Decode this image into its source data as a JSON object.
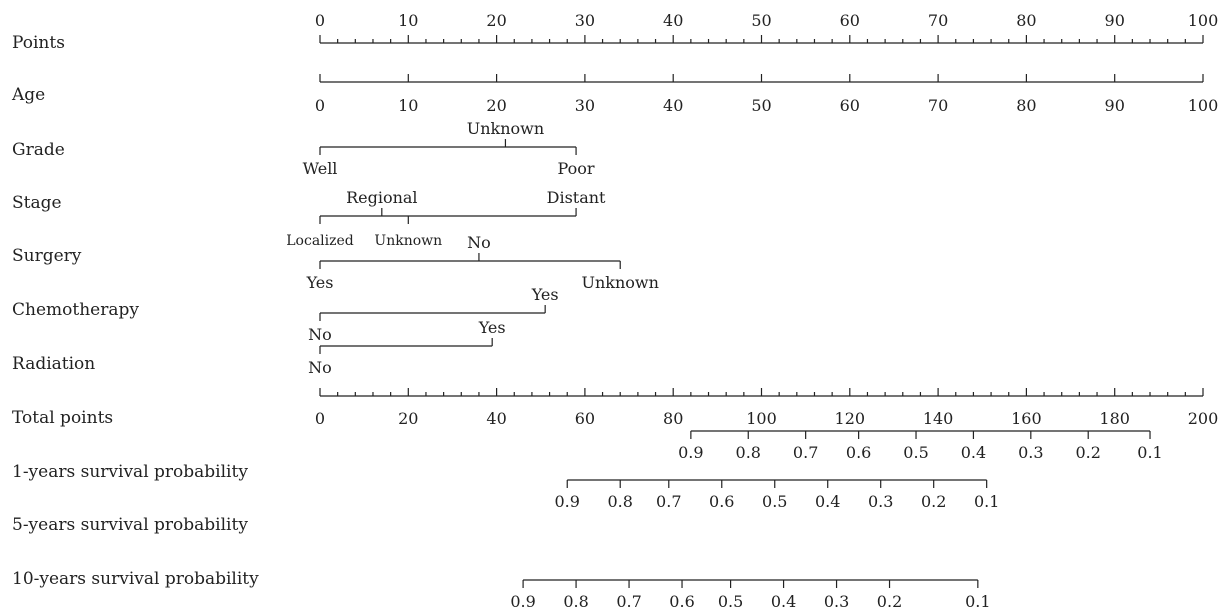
{
  "chart_data": {
    "type": "nomogram",
    "rows": [
      {
        "label": "Points",
        "kind": "scale",
        "min": 0,
        "max": 100,
        "major": [
          0,
          10,
          20,
          30,
          40,
          50,
          60,
          70,
          80,
          90,
          100
        ],
        "minor_step": 2,
        "labels_position": "above"
      },
      {
        "label": "Age",
        "kind": "scale",
        "min": 0,
        "max": 100,
        "major": [
          0,
          10,
          20,
          30,
          40,
          50,
          60,
          70,
          80,
          90,
          100
        ],
        "labels_position": "below"
      },
      {
        "label": "Grade",
        "kind": "categorical",
        "categories": [
          {
            "name": "Well",
            "points": 0,
            "label_position": "below"
          },
          {
            "name": "Unknown",
            "points": 21,
            "label_position": "above"
          },
          {
            "name": "Poor",
            "points": 29,
            "label_position": "below"
          }
        ]
      },
      {
        "label": "Stage",
        "kind": "categorical",
        "categories": [
          {
            "name": "Localized",
            "points": 0,
            "label_position": "below"
          },
          {
            "name": "Regional",
            "points": 7,
            "label_position": "above"
          },
          {
            "name": "Unknown",
            "points": 10,
            "label_position": "below"
          },
          {
            "name": "Distant",
            "points": 29,
            "label_position": "above"
          }
        ]
      },
      {
        "label": "Surgery",
        "kind": "categorical",
        "categories": [
          {
            "name": "Yes",
            "points": 0,
            "label_position": "below"
          },
          {
            "name": "No",
            "points": 18,
            "label_position": "above"
          },
          {
            "name": "Unknown",
            "points": 34,
            "label_position": "below"
          }
        ]
      },
      {
        "label": "Chemotherapy",
        "kind": "categorical",
        "categories": [
          {
            "name": "No",
            "points": 0,
            "label_position": "below"
          },
          {
            "name": "Yes",
            "points": 25.5,
            "label_position": "above"
          }
        ]
      },
      {
        "label": "Radiation",
        "kind": "categorical",
        "categories": [
          {
            "name": "No",
            "points": 0,
            "label_position": "below"
          },
          {
            "name": "Yes",
            "points": 19.5,
            "label_position": "above"
          }
        ]
      },
      {
        "label": "Total points",
        "kind": "scale",
        "min": 0,
        "max": 200,
        "major": [
          0,
          20,
          40,
          60,
          80,
          100,
          120,
          140,
          160,
          180,
          200
        ],
        "minor_step": 4,
        "labels_position": "below"
      },
      {
        "label": "1-years survival probability",
        "kind": "probability",
        "ticks": [
          {
            "label": "0.9",
            "total": 84
          },
          {
            "label": "0.8",
            "total": 97
          },
          {
            "label": "0.7",
            "total": 110
          },
          {
            "label": "0.6",
            "total": 122
          },
          {
            "label": "0.5",
            "total": 135
          },
          {
            "label": "0.4",
            "total": 148
          },
          {
            "label": "0.3",
            "total": 161
          },
          {
            "label": "0.2",
            "total": 174
          },
          {
            "label": "0.1",
            "total": 188
          }
        ]
      },
      {
        "label": "5-years survival probability",
        "kind": "probability",
        "ticks": [
          {
            "label": "0.9",
            "total": 56
          },
          {
            "label": "0.8",
            "total": 68
          },
          {
            "label": "0.7",
            "total": 79
          },
          {
            "label": "0.6",
            "total": 91
          },
          {
            "label": "0.5",
            "total": 103
          },
          {
            "label": "0.4",
            "total": 115
          },
          {
            "label": "0.3",
            "total": 127
          },
          {
            "label": "0.2",
            "total": 139
          },
          {
            "label": "0.1",
            "total": 151
          }
        ]
      },
      {
        "label": "10-years survival probability",
        "kind": "probability",
        "ticks": [
          {
            "label": "0.9",
            "total": 46
          },
          {
            "label": "0.8",
            "total": 58
          },
          {
            "label": "0.7",
            "total": 70
          },
          {
            "label": "0.6",
            "total": 82
          },
          {
            "label": "0.5",
            "total": 93
          },
          {
            "label": "0.4",
            "total": 105
          },
          {
            "label": "0.3",
            "total": 117
          },
          {
            "label": "0.2",
            "total": 129
          },
          {
            "label": "0.1",
            "total": 149
          }
        ]
      }
    ]
  }
}
